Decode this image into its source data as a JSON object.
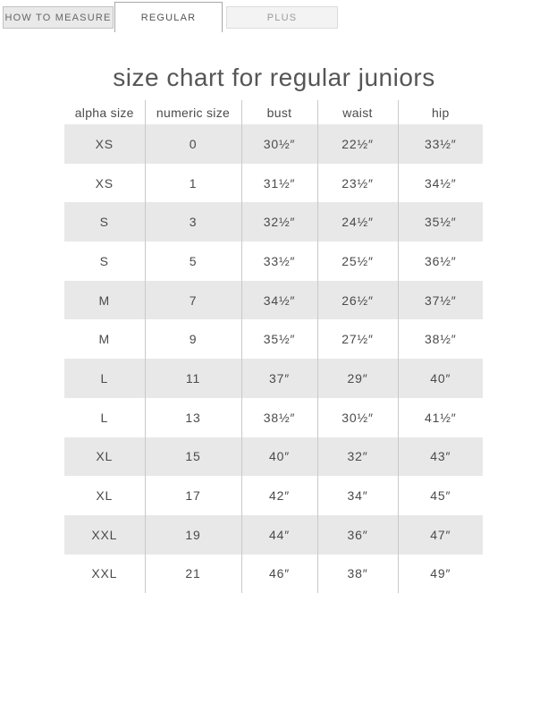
{
  "tabs": [
    {
      "label": "HOW TO MEASURE",
      "active": false
    },
    {
      "label": "REGULAR",
      "active": true
    },
    {
      "label": "PLUS",
      "active": false
    }
  ],
  "title": "size chart for regular juniors",
  "table": {
    "headers": [
      "alpha size",
      "numeric size",
      "bust",
      "waist",
      "hip"
    ],
    "rows": [
      [
        "XS",
        "0",
        "30½″",
        "22½″",
        "33½″"
      ],
      [
        "XS",
        "1",
        "31½″",
        "23½″",
        "34½″"
      ],
      [
        "S",
        "3",
        "32½″",
        "24½″",
        "35½″"
      ],
      [
        "S",
        "5",
        "33½″",
        "25½″",
        "36½″"
      ],
      [
        "M",
        "7",
        "34½″",
        "26½″",
        "37½″"
      ],
      [
        "M",
        "9",
        "35½″",
        "27½″",
        "38½″"
      ],
      [
        "L",
        "11",
        "37″",
        "29″",
        "40″"
      ],
      [
        "L",
        "13",
        "38½″",
        "30½″",
        "41½″"
      ],
      [
        "XL",
        "15",
        "40″",
        "32″",
        "43″"
      ],
      [
        "XL",
        "17",
        "42″",
        "34″",
        "45″"
      ],
      [
        "XXL",
        "19",
        "44″",
        "36″",
        "47″"
      ],
      [
        "XXL",
        "21",
        "46″",
        "38″",
        "49″"
      ]
    ]
  },
  "colors": {
    "row_alt_bg": "#e8e8e8",
    "separator": "#c9c9c9",
    "text": "#4d4d4d",
    "tab_inactive_bg": "#e9e9e9",
    "tab_inactive_border": "#c2c2c2",
    "tab_active_border": "#a8a8a8",
    "tab_plus_bg": "#f3f3f3",
    "tab_plus_border": "#dcdcdc"
  }
}
